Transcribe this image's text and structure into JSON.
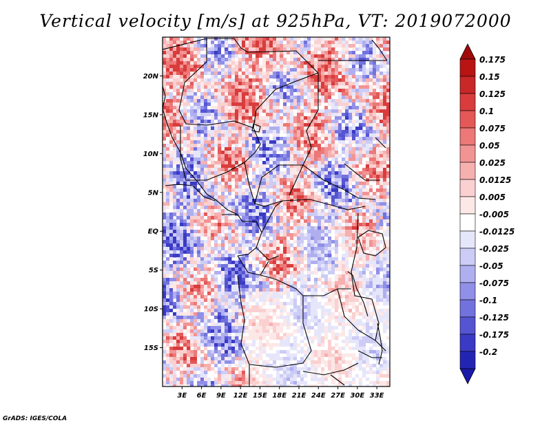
{
  "title": "Vertical velocity [m/s] at 925hPa, VT: 2019072000",
  "credit": "GrADS: IGES/COLA",
  "map": {
    "lon_range": [
      0,
      35
    ],
    "lat_range": [
      -20,
      25
    ],
    "lon_ticks": [
      {
        "value": 3,
        "label": "3E"
      },
      {
        "value": 6,
        "label": "6E"
      },
      {
        "value": 9,
        "label": "9E"
      },
      {
        "value": 12,
        "label": "12E"
      },
      {
        "value": 15,
        "label": "15E"
      },
      {
        "value": 18,
        "label": "18E"
      },
      {
        "value": 21,
        "label": "21E"
      },
      {
        "value": 24,
        "label": "24E"
      },
      {
        "value": 27,
        "label": "27E"
      },
      {
        "value": 30,
        "label": "30E"
      },
      {
        "value": 33,
        "label": "33E"
      }
    ],
    "lat_ticks": [
      {
        "value": 20,
        "label": "20N"
      },
      {
        "value": 15,
        "label": "15N"
      },
      {
        "value": 10,
        "label": "10N"
      },
      {
        "value": 5,
        "label": "5N"
      },
      {
        "value": 0,
        "label": "EQ"
      },
      {
        "value": -5,
        "label": "5S"
      },
      {
        "value": -10,
        "label": "10S"
      },
      {
        "value": -15,
        "label": "15S"
      }
    ]
  },
  "colorbar": {
    "levels": [
      {
        "label": "0.175",
        "color": "#b81414"
      },
      {
        "label": "0.15",
        "color": "#c82828"
      },
      {
        "label": "0.125",
        "color": "#d83c3c"
      },
      {
        "label": "0.1",
        "color": "#e45858"
      },
      {
        "label": "0.075",
        "color": "#ec7878"
      },
      {
        "label": "0.05",
        "color": "#f29494"
      },
      {
        "label": "0.025",
        "color": "#f6b0b0"
      },
      {
        "label": "0.0125",
        "color": "#fad0d0"
      },
      {
        "label": "0.005",
        "color": "#fde8e8"
      },
      {
        "label": "-0.005",
        "color": "#ffffff"
      },
      {
        "label": "-0.0125",
        "color": "#e6e6fb"
      },
      {
        "label": "-0.025",
        "color": "#ccccf6"
      },
      {
        "label": "-0.05",
        "color": "#afaff0"
      },
      {
        "label": "-0.075",
        "color": "#9090e8"
      },
      {
        "label": "-0.1",
        "color": "#7272de"
      },
      {
        "label": "-0.125",
        "color": "#5555d2"
      },
      {
        "label": "-0.175",
        "color": "#3a3ac4"
      },
      {
        "label": "-0.2",
        "color": "#2424b4"
      }
    ],
    "top_color": "#a00a0a",
    "bottom_color": "#1a1aa8"
  }
}
